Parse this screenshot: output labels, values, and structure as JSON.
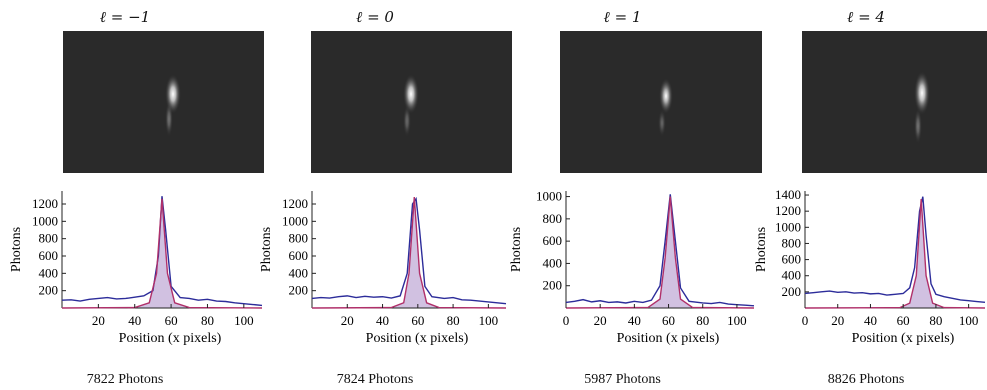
{
  "chart_data": [
    {
      "type": "area",
      "title": "ℓ = −1",
      "image_caption": "7822 Photons",
      "xlabel": "Position (x pixels)",
      "ylabel": "Photons",
      "xlim": [
        0,
        110
      ],
      "ylim": [
        0,
        1350
      ],
      "xticks": [
        20,
        40,
        60,
        80,
        100
      ],
      "yticks": [
        200,
        400,
        600,
        800,
        1000,
        1200
      ],
      "series": [
        {
          "values": [
            [
              0,
              90
            ],
            [
              5,
              95
            ],
            [
              10,
              80
            ],
            [
              15,
              100
            ],
            [
              20,
              110
            ],
            [
              25,
              120
            ],
            [
              30,
              105
            ],
            [
              35,
              110
            ],
            [
              40,
              125
            ],
            [
              45,
              140
            ],
            [
              50,
              200
            ],
            [
              53,
              600
            ],
            [
              55,
              1290
            ],
            [
              57,
              900
            ],
            [
              60,
              250
            ],
            [
              65,
              120
            ],
            [
              70,
              110
            ],
            [
              75,
              90
            ],
            [
              80,
              100
            ],
            [
              85,
              80
            ],
            [
              90,
              75
            ],
            [
              95,
              60
            ],
            [
              100,
              50
            ],
            [
              105,
              40
            ],
            [
              110,
              30
            ]
          ]
        },
        {
          "values": [
            [
              0,
              0
            ],
            [
              40,
              5
            ],
            [
              48,
              60
            ],
            [
              52,
              400
            ],
            [
              55,
              1260
            ],
            [
              58,
              400
            ],
            [
              62,
              60
            ],
            [
              70,
              5
            ],
            [
              110,
              0
            ]
          ]
        }
      ]
    },
    {
      "type": "area",
      "title": "ℓ = 0",
      "image_caption": "7824 Photons",
      "xlabel": "Position (x pixels)",
      "ylabel": "Photons",
      "xlim": [
        0,
        110
      ],
      "ylim": [
        0,
        1350
      ],
      "xticks": [
        20,
        40,
        60,
        80,
        100
      ],
      "yticks": [
        200,
        400,
        600,
        800,
        1000,
        1200
      ],
      "series": [
        {
          "values": [
            [
              0,
              110
            ],
            [
              5,
              120
            ],
            [
              10,
              115
            ],
            [
              15,
              130
            ],
            [
              20,
              140
            ],
            [
              25,
              120
            ],
            [
              30,
              135
            ],
            [
              35,
              125
            ],
            [
              40,
              130
            ],
            [
              45,
              115
            ],
            [
              50,
              140
            ],
            [
              54,
              400
            ],
            [
              57,
              1200
            ],
            [
              59,
              1260
            ],
            [
              61,
              900
            ],
            [
              64,
              250
            ],
            [
              68,
              130
            ],
            [
              75,
              110
            ],
            [
              80,
              120
            ],
            [
              85,
              95
            ],
            [
              90,
              90
            ],
            [
              95,
              80
            ],
            [
              100,
              70
            ],
            [
              105,
              60
            ],
            [
              110,
              50
            ]
          ]
        },
        {
          "values": [
            [
              0,
              0
            ],
            [
              45,
              5
            ],
            [
              52,
              60
            ],
            [
              55,
              400
            ],
            [
              58,
              1280
            ],
            [
              61,
              400
            ],
            [
              65,
              60
            ],
            [
              72,
              5
            ],
            [
              110,
              0
            ]
          ]
        }
      ]
    },
    {
      "type": "area",
      "title": "ℓ = 1",
      "image_caption": "5987 Photons",
      "xlabel": "Position (x pixels)",
      "ylabel": "Photons",
      "xlim": [
        0,
        110
      ],
      "ylim": [
        0,
        1050
      ],
      "xticks": [
        0,
        20,
        40,
        60,
        80,
        100
      ],
      "yticks": [
        200,
        400,
        600,
        800,
        1000
      ],
      "series": [
        {
          "values": [
            [
              0,
              50
            ],
            [
              5,
              60
            ],
            [
              10,
              75
            ],
            [
              15,
              55
            ],
            [
              20,
              65
            ],
            [
              25,
              50
            ],
            [
              30,
              55
            ],
            [
              35,
              45
            ],
            [
              40,
              60
            ],
            [
              45,
              50
            ],
            [
              50,
              70
            ],
            [
              55,
              200
            ],
            [
              58,
              600
            ],
            [
              61,
              1020
            ],
            [
              64,
              600
            ],
            [
              67,
              180
            ],
            [
              72,
              60
            ],
            [
              80,
              45
            ],
            [
              85,
              40
            ],
            [
              90,
              50
            ],
            [
              95,
              35
            ],
            [
              100,
              30
            ],
            [
              105,
              25
            ],
            [
              110,
              20
            ]
          ]
        },
        {
          "values": [
            [
              0,
              0
            ],
            [
              48,
              5
            ],
            [
              55,
              80
            ],
            [
              58,
              450
            ],
            [
              61,
              1000
            ],
            [
              64,
              450
            ],
            [
              67,
              80
            ],
            [
              74,
              5
            ],
            [
              110,
              0
            ]
          ]
        }
      ]
    },
    {
      "type": "area",
      "title": "ℓ = 4",
      "image_caption": "8826 Photons",
      "xlabel": "Position (x pixels)",
      "ylabel": "Photons",
      "xlim": [
        0,
        110
      ],
      "ylim": [
        0,
        1450
      ],
      "xticks": [
        0,
        20,
        40,
        60,
        80,
        100
      ],
      "yticks": [
        200,
        400,
        600,
        800,
        1000,
        1200,
        1400
      ],
      "series": [
        {
          "values": [
            [
              0,
              180
            ],
            [
              5,
              190
            ],
            [
              10,
              200
            ],
            [
              15,
              210
            ],
            [
              20,
              195
            ],
            [
              25,
              200
            ],
            [
              30,
              185
            ],
            [
              35,
              190
            ],
            [
              40,
              175
            ],
            [
              45,
              180
            ],
            [
              50,
              160
            ],
            [
              55,
              170
            ],
            [
              60,
              180
            ],
            [
              64,
              250
            ],
            [
              67,
              500
            ],
            [
              70,
              1200
            ],
            [
              72,
              1380
            ],
            [
              74,
              900
            ],
            [
              77,
              300
            ],
            [
              80,
              170
            ],
            [
              85,
              140
            ],
            [
              90,
              120
            ],
            [
              95,
              100
            ],
            [
              100,
              90
            ],
            [
              105,
              80
            ],
            [
              110,
              70
            ]
          ]
        },
        {
          "values": [
            [
              0,
              0
            ],
            [
              58,
              5
            ],
            [
              64,
              60
            ],
            [
              68,
              400
            ],
            [
              71,
              1350
            ],
            [
              74,
              400
            ],
            [
              78,
              60
            ],
            [
              85,
              5
            ],
            [
              110,
              0
            ]
          ]
        }
      ]
    }
  ],
  "colors": {
    "raw": "#2c2c9a",
    "fit": "#b0306a",
    "fill": "#c9b6dc",
    "camera_bg": "#2a2a2a"
  }
}
